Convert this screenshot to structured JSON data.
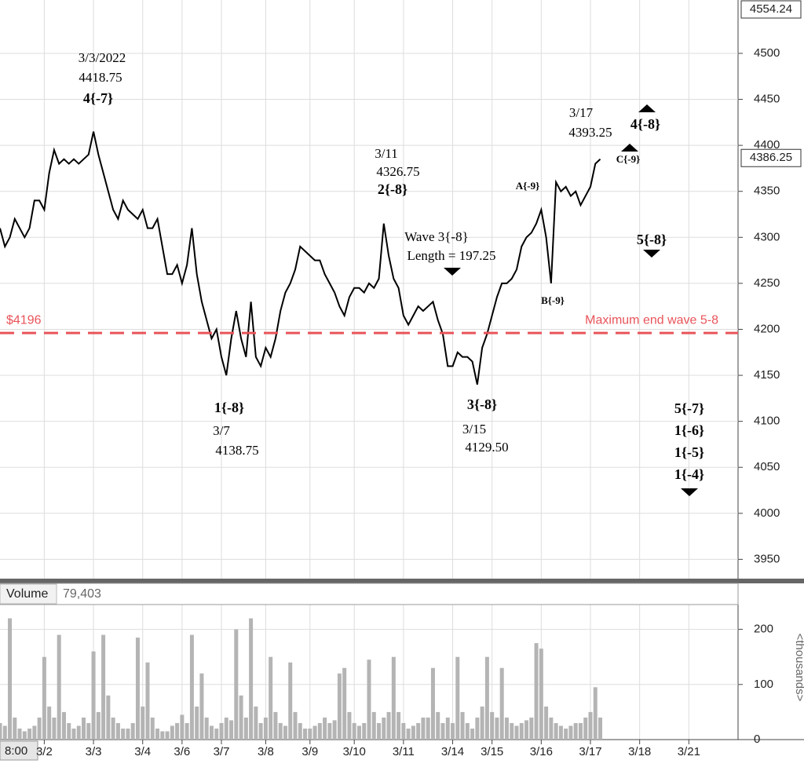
{
  "chart_data": [
    {
      "type": "line",
      "color": "#000000",
      "grid": true,
      "xlim": [
        0,
        150
      ],
      "xticks": [
        {
          "value": 9,
          "label": "3/2"
        },
        {
          "value": 19,
          "label": "3/3"
        },
        {
          "value": 29,
          "label": "3/4"
        },
        {
          "value": 37,
          "label": "3/6"
        },
        {
          "value": 45,
          "label": "3/7"
        },
        {
          "value": 54,
          "label": "3/8"
        },
        {
          "value": 63,
          "label": "3/9"
        },
        {
          "value": 72,
          "label": "3/10"
        },
        {
          "value": 82,
          "label": "3/11"
        },
        {
          "value": 92,
          "label": "3/14"
        },
        {
          "value": 100,
          "label": "3/15"
        },
        {
          "value": 110,
          "label": "3/16"
        },
        {
          "value": 120,
          "label": "3/17"
        },
        {
          "value": 130,
          "label": "3/18"
        },
        {
          "value": 140,
          "label": "3/21"
        }
      ],
      "x_start_label": "8:00",
      "ylim": [
        3929,
        4558
      ],
      "yticks": [
        3950,
        4000,
        4050,
        4100,
        4150,
        4200,
        4250,
        4300,
        4350,
        4400,
        4450,
        4500
      ],
      "values": [
        4310,
        4290,
        4300,
        4320,
        4310,
        4300,
        4310,
        4340,
        4340,
        4330,
        4370,
        4395,
        4380,
        4385,
        4380,
        4385,
        4380,
        4385,
        4390,
        4415,
        4390,
        4370,
        4350,
        4330,
        4320,
        4340,
        4330,
        4325,
        4320,
        4330,
        4310,
        4310,
        4320,
        4290,
        4260,
        4260,
        4270,
        4250,
        4270,
        4310,
        4260,
        4230,
        4210,
        4190,
        4200,
        4170,
        4150,
        4190,
        4220,
        4190,
        4170,
        4230,
        4170,
        4160,
        4180,
        4170,
        4190,
        4220,
        4240,
        4250,
        4265,
        4290,
        4285,
        4280,
        4275,
        4275,
        4260,
        4250,
        4240,
        4225,
        4215,
        4235,
        4245,
        4245,
        4240,
        4250,
        4245,
        4255,
        4315,
        4280,
        4255,
        4245,
        4215,
        4205,
        4215,
        4225,
        4220,
        4225,
        4230,
        4210,
        4195,
        4160,
        4160,
        4175,
        4170,
        4170,
        4165,
        4140,
        4180,
        4195,
        4215,
        4235,
        4250,
        4250,
        4255,
        4265,
        4290,
        4300,
        4305,
        4315,
        4330,
        4300,
        4250,
        4360,
        4350,
        4355,
        4345,
        4350,
        4335,
        4345,
        4355,
        4380,
        4385
      ],
      "hline": {
        "value": 4196,
        "label": "$4196",
        "text": "Maximum end wave 5-8",
        "color": "#e8545a"
      },
      "price_markers": [
        {
          "value": 4554.24,
          "label": "4554.24"
        },
        {
          "value": 4386.25,
          "label": "4386.25"
        }
      ],
      "annotations": [
        "3/3/2022",
        "4418.75",
        "4{-7}",
        "3/11",
        "4326.75",
        "2{-8}",
        "3/17",
        "4393.25",
        "4{-8}",
        "C{-9}",
        "A{-9}",
        "Wave 3{-8}",
        "Length = 197.25",
        "5{-8}",
        "B{-9}",
        "1{-8}",
        "3/7",
        "4138.75",
        "3{-8}",
        "3/15",
        "4129.50",
        "5{-7}",
        "1{-6}",
        "1{-5}",
        "1{-4}"
      ]
    },
    {
      "type": "bar",
      "title": "Volume",
      "subtitle": "79,403",
      "y_label": "<thousands>",
      "color": "#b4b4b4",
      "ylim": [
        0,
        245
      ],
      "yticks": [
        0,
        100,
        200
      ],
      "values": [
        30,
        25,
        220,
        40,
        20,
        15,
        20,
        25,
        40,
        150,
        60,
        40,
        190,
        50,
        30,
        20,
        25,
        40,
        30,
        160,
        50,
        190,
        80,
        40,
        30,
        20,
        20,
        30,
        185,
        60,
        140,
        40,
        20,
        15,
        15,
        25,
        30,
        45,
        30,
        190,
        60,
        120,
        40,
        25,
        20,
        30,
        40,
        35,
        200,
        80,
        40,
        220,
        60,
        30,
        40,
        150,
        50,
        30,
        25,
        140,
        50,
        30,
        20,
        20,
        25,
        30,
        40,
        30,
        35,
        120,
        130,
        50,
        30,
        25,
        30,
        145,
        50,
        30,
        40,
        50,
        150,
        50,
        30,
        20,
        25,
        30,
        40,
        40,
        130,
        50,
        30,
        40,
        30,
        150,
        50,
        30,
        20,
        40,
        60,
        150,
        50,
        40,
        130,
        40,
        30,
        25,
        30,
        35,
        40,
        175,
        165,
        60,
        40,
        30,
        25,
        20,
        25,
        30,
        30,
        40,
        50,
        95,
        40
      ]
    }
  ]
}
